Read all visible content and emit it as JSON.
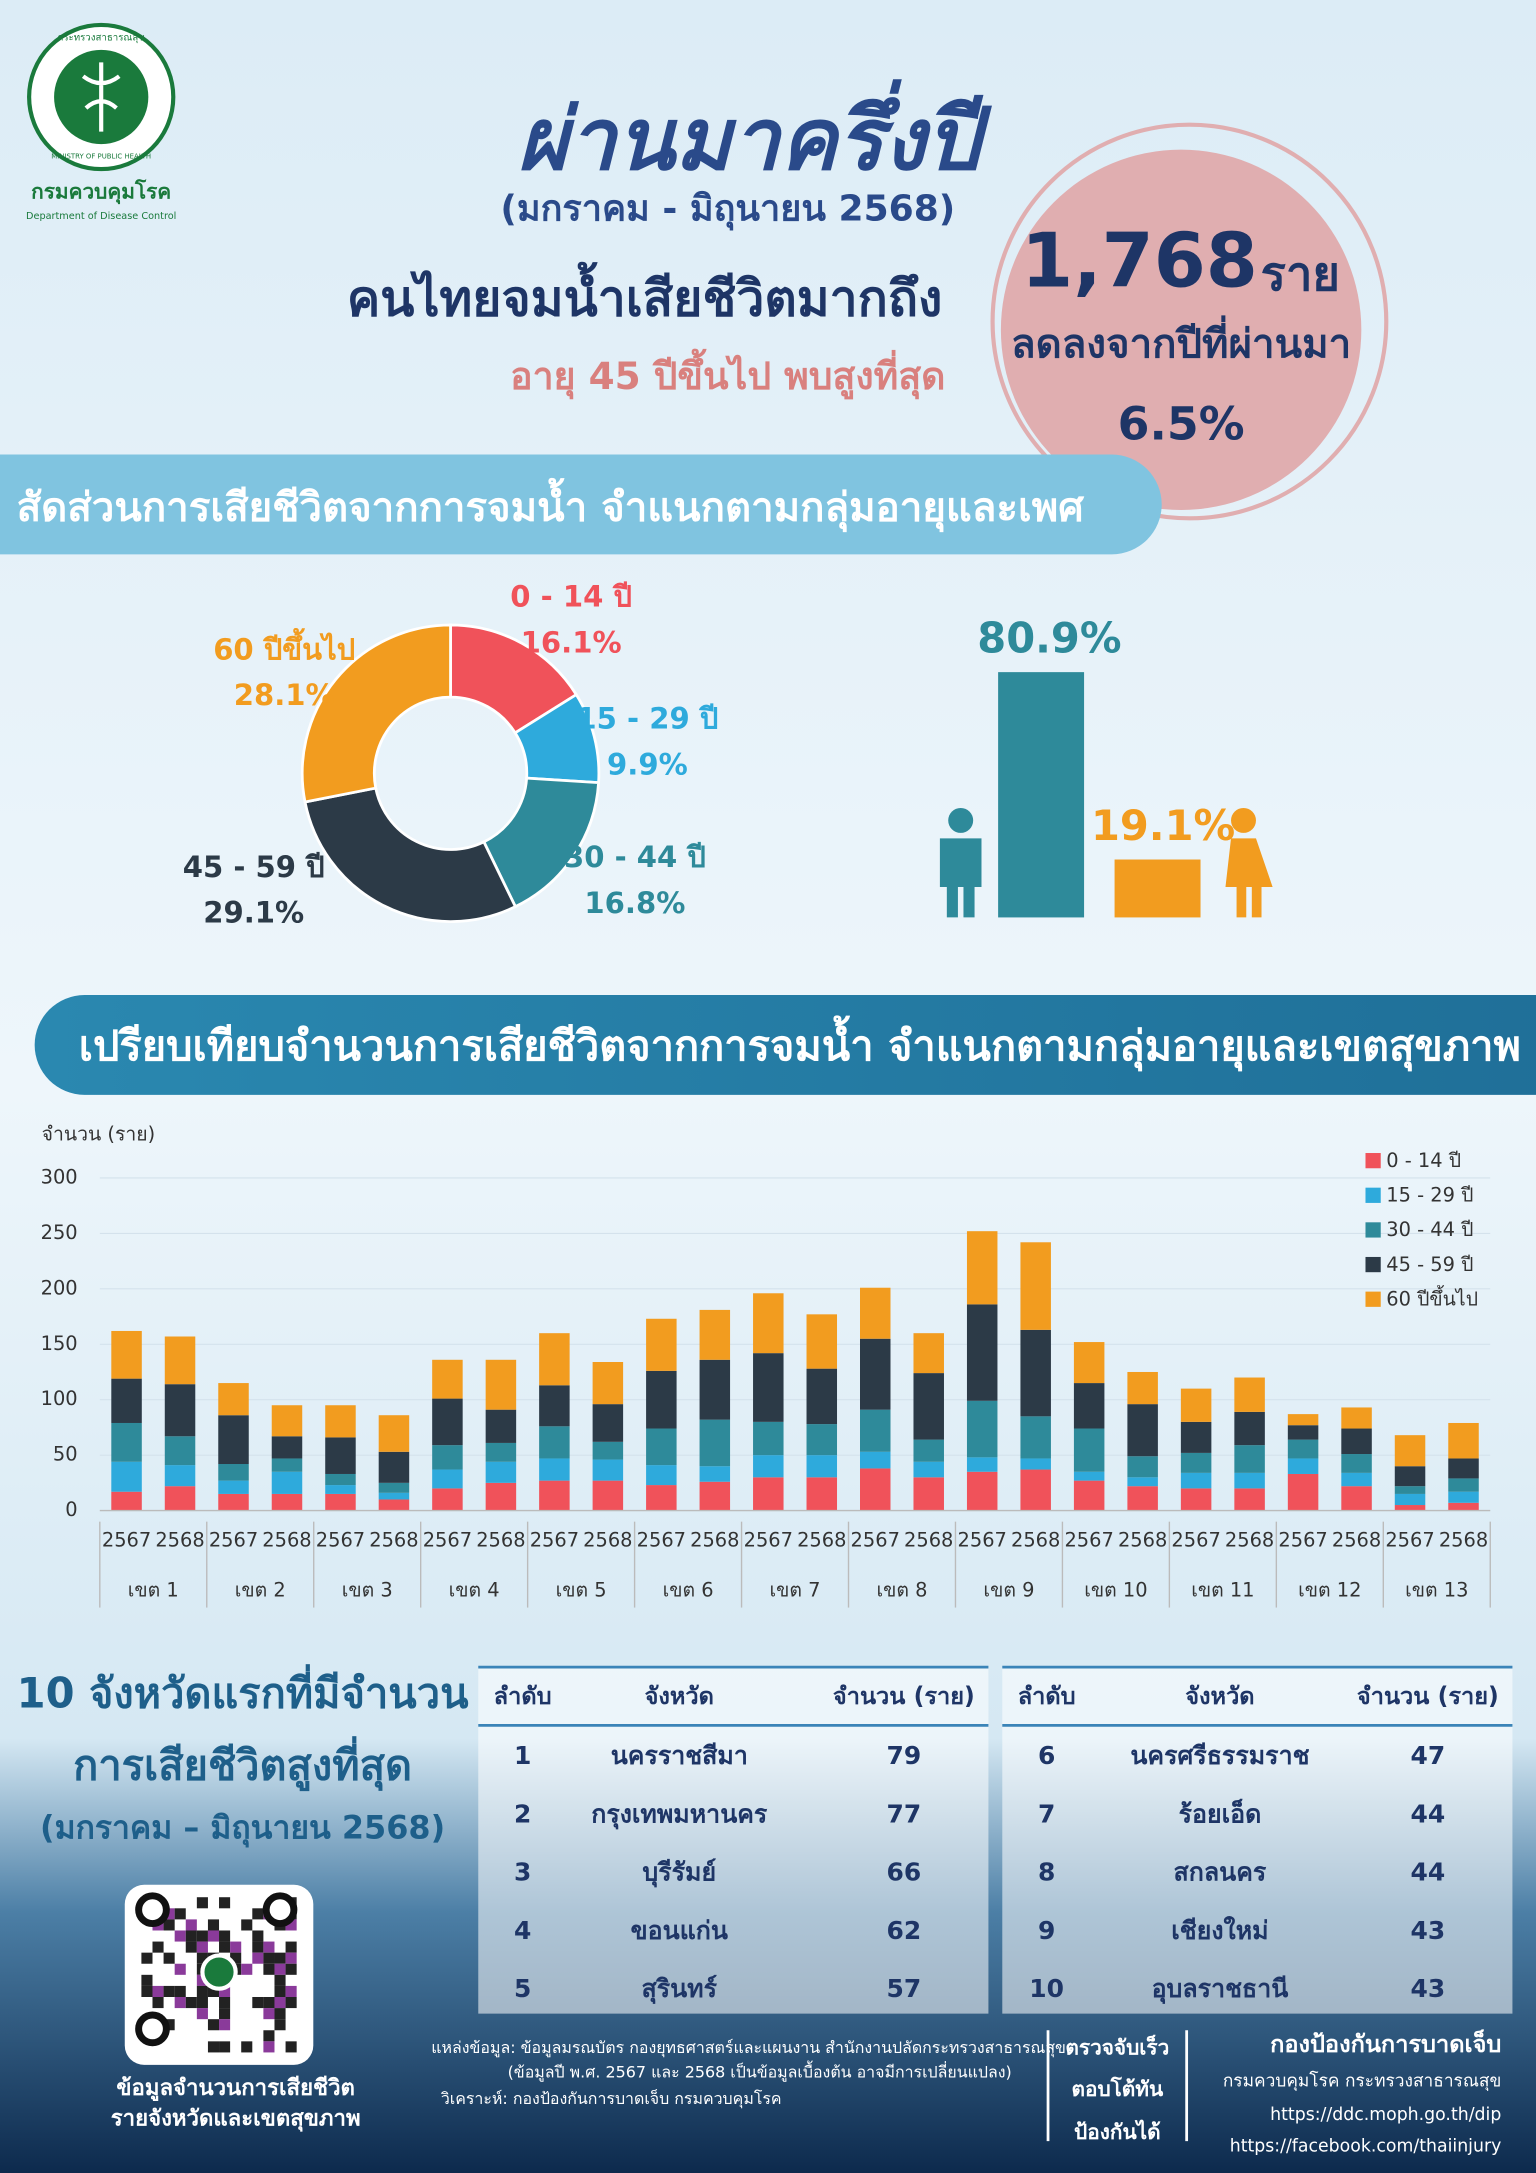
{
  "header": {
    "ministry": "กระทรวงสาธารณสุข",
    "ministry_en": "MINISTRY OF PUBLIC HEALTH",
    "department": "กรมควบคุมโรค",
    "department_en": "Department of Disease Control",
    "title": "ผ่านมาครึ่งปี",
    "period": "(มกราคม - มิถุนายน 2568)",
    "headline": "คนไทยจมน้ำเสียชีวิตมากถึง",
    "subheadline": "อายุ 45 ปีขึ้นไป พบสูงที่สุด",
    "total": "1,768",
    "total_unit": "ราย",
    "change_text": "ลดลงจากปีที่ผ่านมา",
    "change_value": "6.5%"
  },
  "section1": "สัดส่วนการเสียชีวิตจากการจมน้ำ จำแนกตามกลุ่มอายุและเพศ",
  "section2": "เปรียบเทียบจำนวนการเสียชีวิตจากการจมน้ำ จำแนกตามกลุ่มอายุและเขตสุขภาพ",
  "chart_data": [
    {
      "type": "pie",
      "categories": [
        "0 - 14 ปี",
        "15 - 29 ปี",
        "30 - 44 ปี",
        "45 - 59 ปี",
        "60 ปีขึ้นไป"
      ],
      "values": [
        16.1,
        9.9,
        16.8,
        29.1,
        28.1
      ],
      "value_labels": [
        "16.1%",
        "9.9%",
        "16.8%",
        "29.1%",
        "28.1%"
      ],
      "colors": [
        "#f0525a",
        "#2eaadc",
        "#2e8a9a",
        "#2c3a47",
        "#f29c1f"
      ],
      "donut": true
    },
    {
      "type": "bar",
      "categories": [
        null,
        null
      ],
      "values": [
        80.9,
        19.1
      ],
      "value_labels": [
        "80.9%",
        "19.1%"
      ],
      "colors": [
        "#2e8a9a",
        "#f29c1f"
      ],
      "ylim": [
        0,
        80.9
      ]
    },
    {
      "type": "stacked_bar",
      "y_label": "จำนวน (ราย)",
      "categories": [
        "2567",
        "2568",
        "2567",
        "2568",
        "2567",
        "2568",
        "2567",
        "2568",
        "2567",
        "2568",
        "2567",
        "2568",
        "2567",
        "2568",
        "2567",
        "2568",
        "2567",
        "2568",
        "2567",
        "2568",
        "2567",
        "2568",
        "2567",
        "2568",
        "2567",
        "2568"
      ],
      "groups": [
        "เขต 1",
        "เขต 2",
        "เขต 3",
        "เขต 4",
        "เขต 5",
        "เขต 6",
        "เขต 7",
        "เขต 8",
        "เขต 9",
        "เขต 10",
        "เขต 11",
        "เขต 12",
        "เขต 13"
      ],
      "series": [
        {
          "name": "0 - 14 ปี",
          "color": "#f0525a",
          "values": [
            17,
            22,
            15,
            15,
            15,
            10,
            20,
            25,
            27,
            27,
            23,
            26,
            30,
            30,
            38,
            30,
            35,
            37,
            27,
            22,
            20,
            20,
            33,
            22,
            5,
            7
          ]
        },
        {
          "name": "15 - 29 ปี",
          "color": "#2eaadc",
          "values": [
            27,
            19,
            12,
            20,
            8,
            6,
            17,
            19,
            20,
            19,
            18,
            14,
            20,
            20,
            15,
            14,
            13,
            10,
            8,
            8,
            14,
            14,
            14,
            12,
            10,
            10
          ]
        },
        {
          "name": "30 - 44 ปี",
          "color": "#2e8a9a",
          "values": [
            35,
            26,
            15,
            12,
            10,
            9,
            22,
            17,
            29,
            16,
            33,
            42,
            30,
            28,
            38,
            20,
            51,
            38,
            39,
            19,
            18,
            25,
            17,
            17,
            7,
            12
          ]
        },
        {
          "name": "45 - 59 ปี",
          "color": "#2c3a47",
          "values": [
            40,
            47,
            44,
            20,
            33,
            28,
            42,
            30,
            37,
            34,
            52,
            54,
            62,
            50,
            64,
            60,
            87,
            78,
            41,
            47,
            28,
            30,
            13,
            23,
            18,
            18
          ]
        },
        {
          "name": "60 ปีขึ้นไป",
          "color": "#f29c1f",
          "values": [
            43,
            43,
            29,
            28,
            29,
            33,
            35,
            45,
            47,
            38,
            47,
            45,
            54,
            49,
            46,
            36,
            66,
            79,
            37,
            29,
            30,
            31,
            10,
            19,
            28,
            32
          ]
        }
      ],
      "ylim": [
        0,
        300
      ],
      "yticks": [
        0,
        50,
        100,
        150,
        200,
        250,
        300
      ],
      "grid": true,
      "legend": "top-right"
    }
  ],
  "ranking": {
    "title_lines": [
      "10 จังหวัดแรกที่มีจำนวน",
      "การเสียชีวิตสูงที่สุด",
      "(มกราคม – มิถุนายน 2568)"
    ],
    "headers": [
      "ลำดับ",
      "จังหวัด",
      "จำนวน (ราย)"
    ],
    "rows": [
      [
        1,
        "นครราชสีมา",
        79
      ],
      [
        2,
        "กรุงเทพมหานคร",
        77
      ],
      [
        3,
        "บุรีรัมย์",
        66
      ],
      [
        4,
        "ขอนแก่น",
        62
      ],
      [
        5,
        "สุรินทร์",
        57
      ],
      [
        6,
        "นครศรีธรรมราช",
        47
      ],
      [
        7,
        "ร้อยเอ็ด",
        44
      ],
      [
        8,
        "สกลนคร",
        44
      ],
      [
        9,
        "เชียงใหม่",
        43
      ],
      [
        10,
        "อุบลราชธานี",
        43
      ]
    ]
  },
  "footer": {
    "qr_caption": [
      "ข้อมูลจำนวนการเสียชีวิต",
      "รายจังหวัดและเขตสุขภาพ"
    ],
    "source": [
      "แหล่งข้อมูล: ข้อมูลมรณบัตร กองยุทธศาสตร์และแผนงาน สำนักงานปลัดกระทรวงสาธารณสุข",
      "(ข้อมูลปี พ.ศ. 2567 และ 2568 เป็นข้อมูลเบื้องต้น อาจมีการเปลี่ยนแปลง)",
      "วิเคราะห์: กองป้องกันการบาดเจ็บ กรมควบคุมโรค"
    ],
    "slogan": [
      "ตรวจจับเร็ว",
      "ตอบโต้ทัน",
      "ป้องกันได้"
    ],
    "org": [
      "กองป้องกันการบาดเจ็บ",
      "กรมควบคุมโรค กระทรวงสาธารณสุข",
      "https://ddc.moph.go.th/dip",
      "https://facebook.com/thaiinjury"
    ]
  }
}
